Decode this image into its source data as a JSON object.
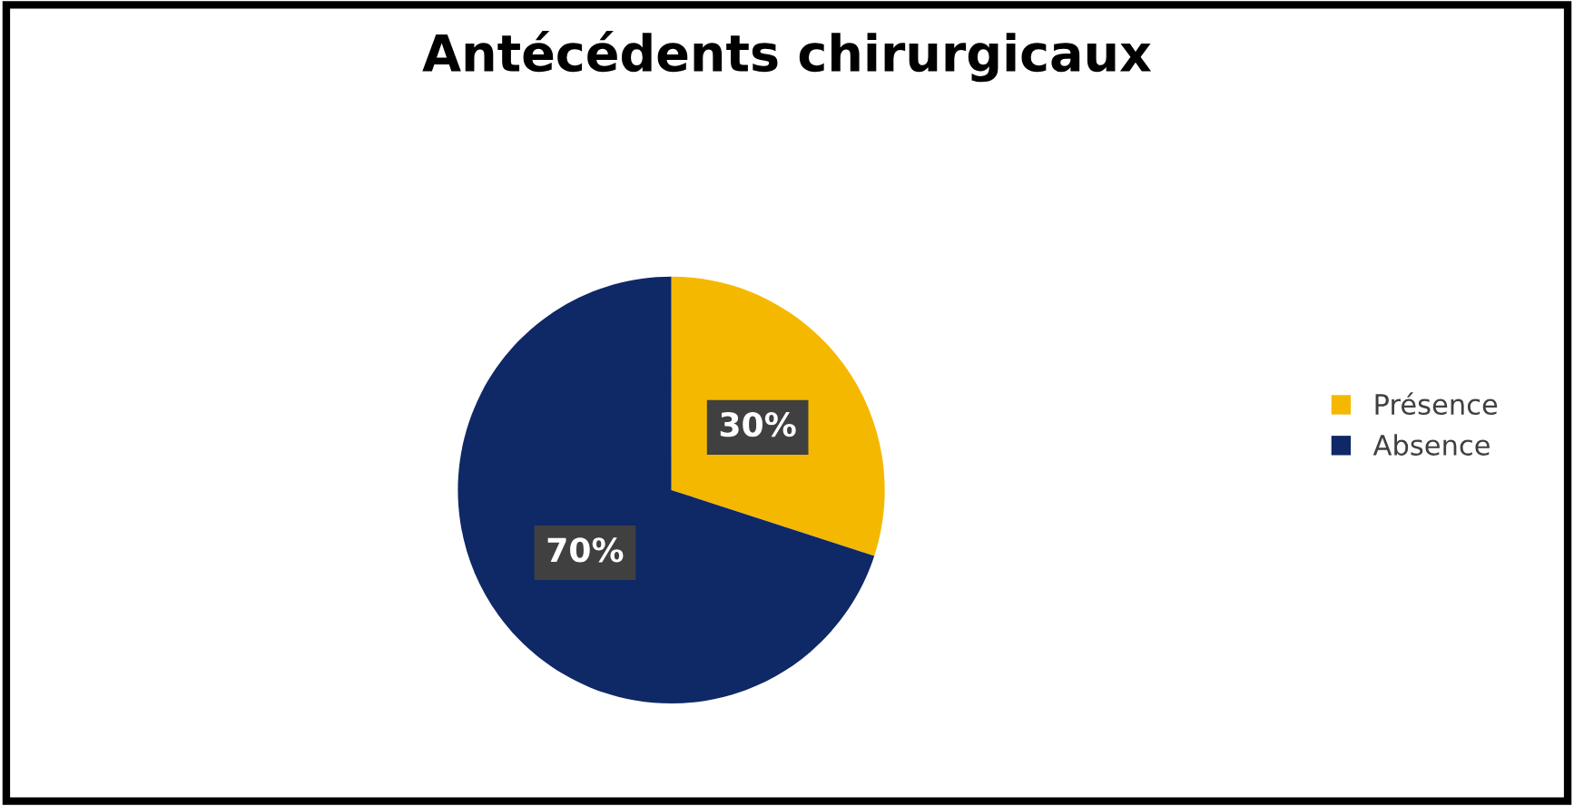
{
  "chart_data": {
    "type": "pie",
    "title": "Antécédents chirurgicaux",
    "categories": [
      "Présence",
      "Absence"
    ],
    "values": [
      30,
      70
    ],
    "colors": [
      "#f5b800",
      "#0f2866"
    ],
    "value_labels": [
      "30%",
      "70%"
    ],
    "legend": "right"
  }
}
